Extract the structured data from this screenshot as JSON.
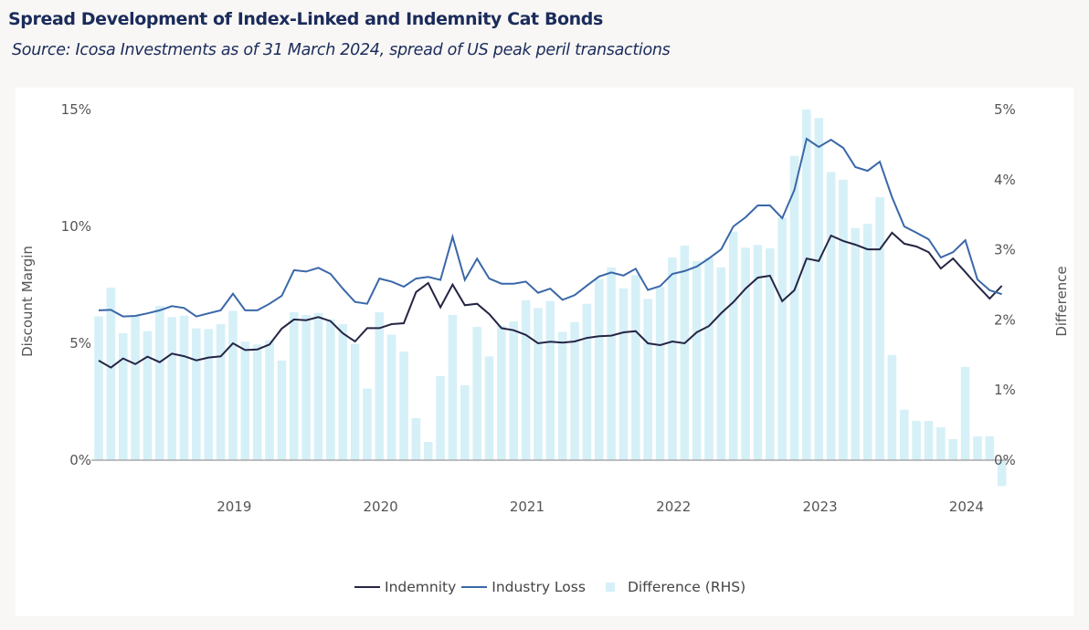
{
  "header": {
    "title": "Spread Development of Index-Linked and Indemnity Cat Bonds",
    "subtitle": "Source: Icosa Investments as of 31 March 2024, spread of US peak peril transactions"
  },
  "colors": {
    "indemnity": "#252545",
    "industry_loss": "#3a67a8",
    "difference": "#d6f0f7",
    "title": "#1b2b5b"
  },
  "chart_data": {
    "type": "bar+line",
    "title": "Spread Development of Index-Linked and Indemnity Cat Bonds",
    "x_start": "2018-01",
    "x_end": "2024-03",
    "x_frequency": "monthly",
    "x_tick_labels": [
      "2019",
      "2020",
      "2021",
      "2022",
      "2023",
      "2024"
    ],
    "ylabel_left": "Discount Margin",
    "ylabel_right": "Difference",
    "ylim_left": [
      0,
      15
    ],
    "ylim_right": [
      0,
      5
    ],
    "y_ticks_left": [
      "0%",
      "5%",
      "10%",
      "15%"
    ],
    "y_ticks_right": [
      "0%",
      "1%",
      "2%",
      "3%",
      "4%",
      "5%"
    ],
    "grid": false,
    "legend_position": "bottom",
    "series": [
      {
        "name": "Indemnity",
        "type": "line",
        "axis": "left",
        "values": [
          4.26,
          3.96,
          4.35,
          4.11,
          4.43,
          4.19,
          4.56,
          4.45,
          4.27,
          4.39,
          4.44,
          5.0,
          4.71,
          4.74,
          4.95,
          5.63,
          6.02,
          5.99,
          6.12,
          5.95,
          5.43,
          5.08,
          5.65,
          5.65,
          5.82,
          5.86,
          7.19,
          7.58,
          6.54,
          7.51,
          6.63,
          6.69,
          6.25,
          5.65,
          5.56,
          5.36,
          5.0,
          5.07,
          5.03,
          5.08,
          5.23,
          5.3,
          5.33,
          5.47,
          5.52,
          5.0,
          4.92,
          5.08,
          5.0,
          5.47,
          5.74,
          6.29,
          6.76,
          7.34,
          7.81,
          7.89,
          6.8,
          7.27,
          8.63,
          8.52,
          9.61,
          9.38,
          9.22,
          9.02,
          9.02,
          9.73,
          9.26,
          9.14,
          8.9,
          8.2,
          8.63,
          8.05,
          7.46,
          6.91,
          7.46
        ]
      },
      {
        "name": "Industry Loss",
        "type": "line",
        "axis": "left",
        "values": [
          6.41,
          6.43,
          6.15,
          6.17,
          6.28,
          6.41,
          6.59,
          6.51,
          6.15,
          6.28,
          6.41,
          7.12,
          6.41,
          6.41,
          6.69,
          7.03,
          8.13,
          8.07,
          8.23,
          7.97,
          7.34,
          6.77,
          6.69,
          7.77,
          7.64,
          7.42,
          7.77,
          7.84,
          7.71,
          9.56,
          7.71,
          8.62,
          7.77,
          7.55,
          7.55,
          7.64,
          7.16,
          7.34,
          6.86,
          7.06,
          7.47,
          7.86,
          8.03,
          7.9,
          8.19,
          7.28,
          7.45,
          7.97,
          8.09,
          8.28,
          8.63,
          9.02,
          10.0,
          10.39,
          10.9,
          10.9,
          10.35,
          11.56,
          13.75,
          13.4,
          13.71,
          13.36,
          12.54,
          12.38,
          12.77,
          11.25,
          10.0,
          9.73,
          9.45,
          8.67,
          8.9,
          9.41,
          7.73,
          7.27,
          7.1
        ]
      },
      {
        "name": "Difference (RHS)",
        "type": "bar",
        "axis": "right",
        "values": [
          2.05,
          2.46,
          1.81,
          2.06,
          1.84,
          2.2,
          2.04,
          2.06,
          1.88,
          1.87,
          1.94,
          2.13,
          1.69,
          1.65,
          1.71,
          1.42,
          2.11,
          2.07,
          2.1,
          2.01,
          1.94,
          1.66,
          1.02,
          2.11,
          1.79,
          1.55,
          0.6,
          0.26,
          1.2,
          2.07,
          1.07,
          1.9,
          1.48,
          1.92,
          1.98,
          2.28,
          2.17,
          2.27,
          1.83,
          1.97,
          2.23,
          2.58,
          2.75,
          2.45,
          2.64,
          2.3,
          2.47,
          2.89,
          3.06,
          2.84,
          2.89,
          2.75,
          3.26,
          3.03,
          3.07,
          3.02,
          3.46,
          4.34,
          5.0,
          4.88,
          4.11,
          4.0,
          3.31,
          3.37,
          3.75,
          1.5,
          0.72,
          0.56,
          0.56,
          0.47,
          0.3,
          1.33,
          0.34,
          0.34,
          -0.37
        ]
      }
    ]
  }
}
